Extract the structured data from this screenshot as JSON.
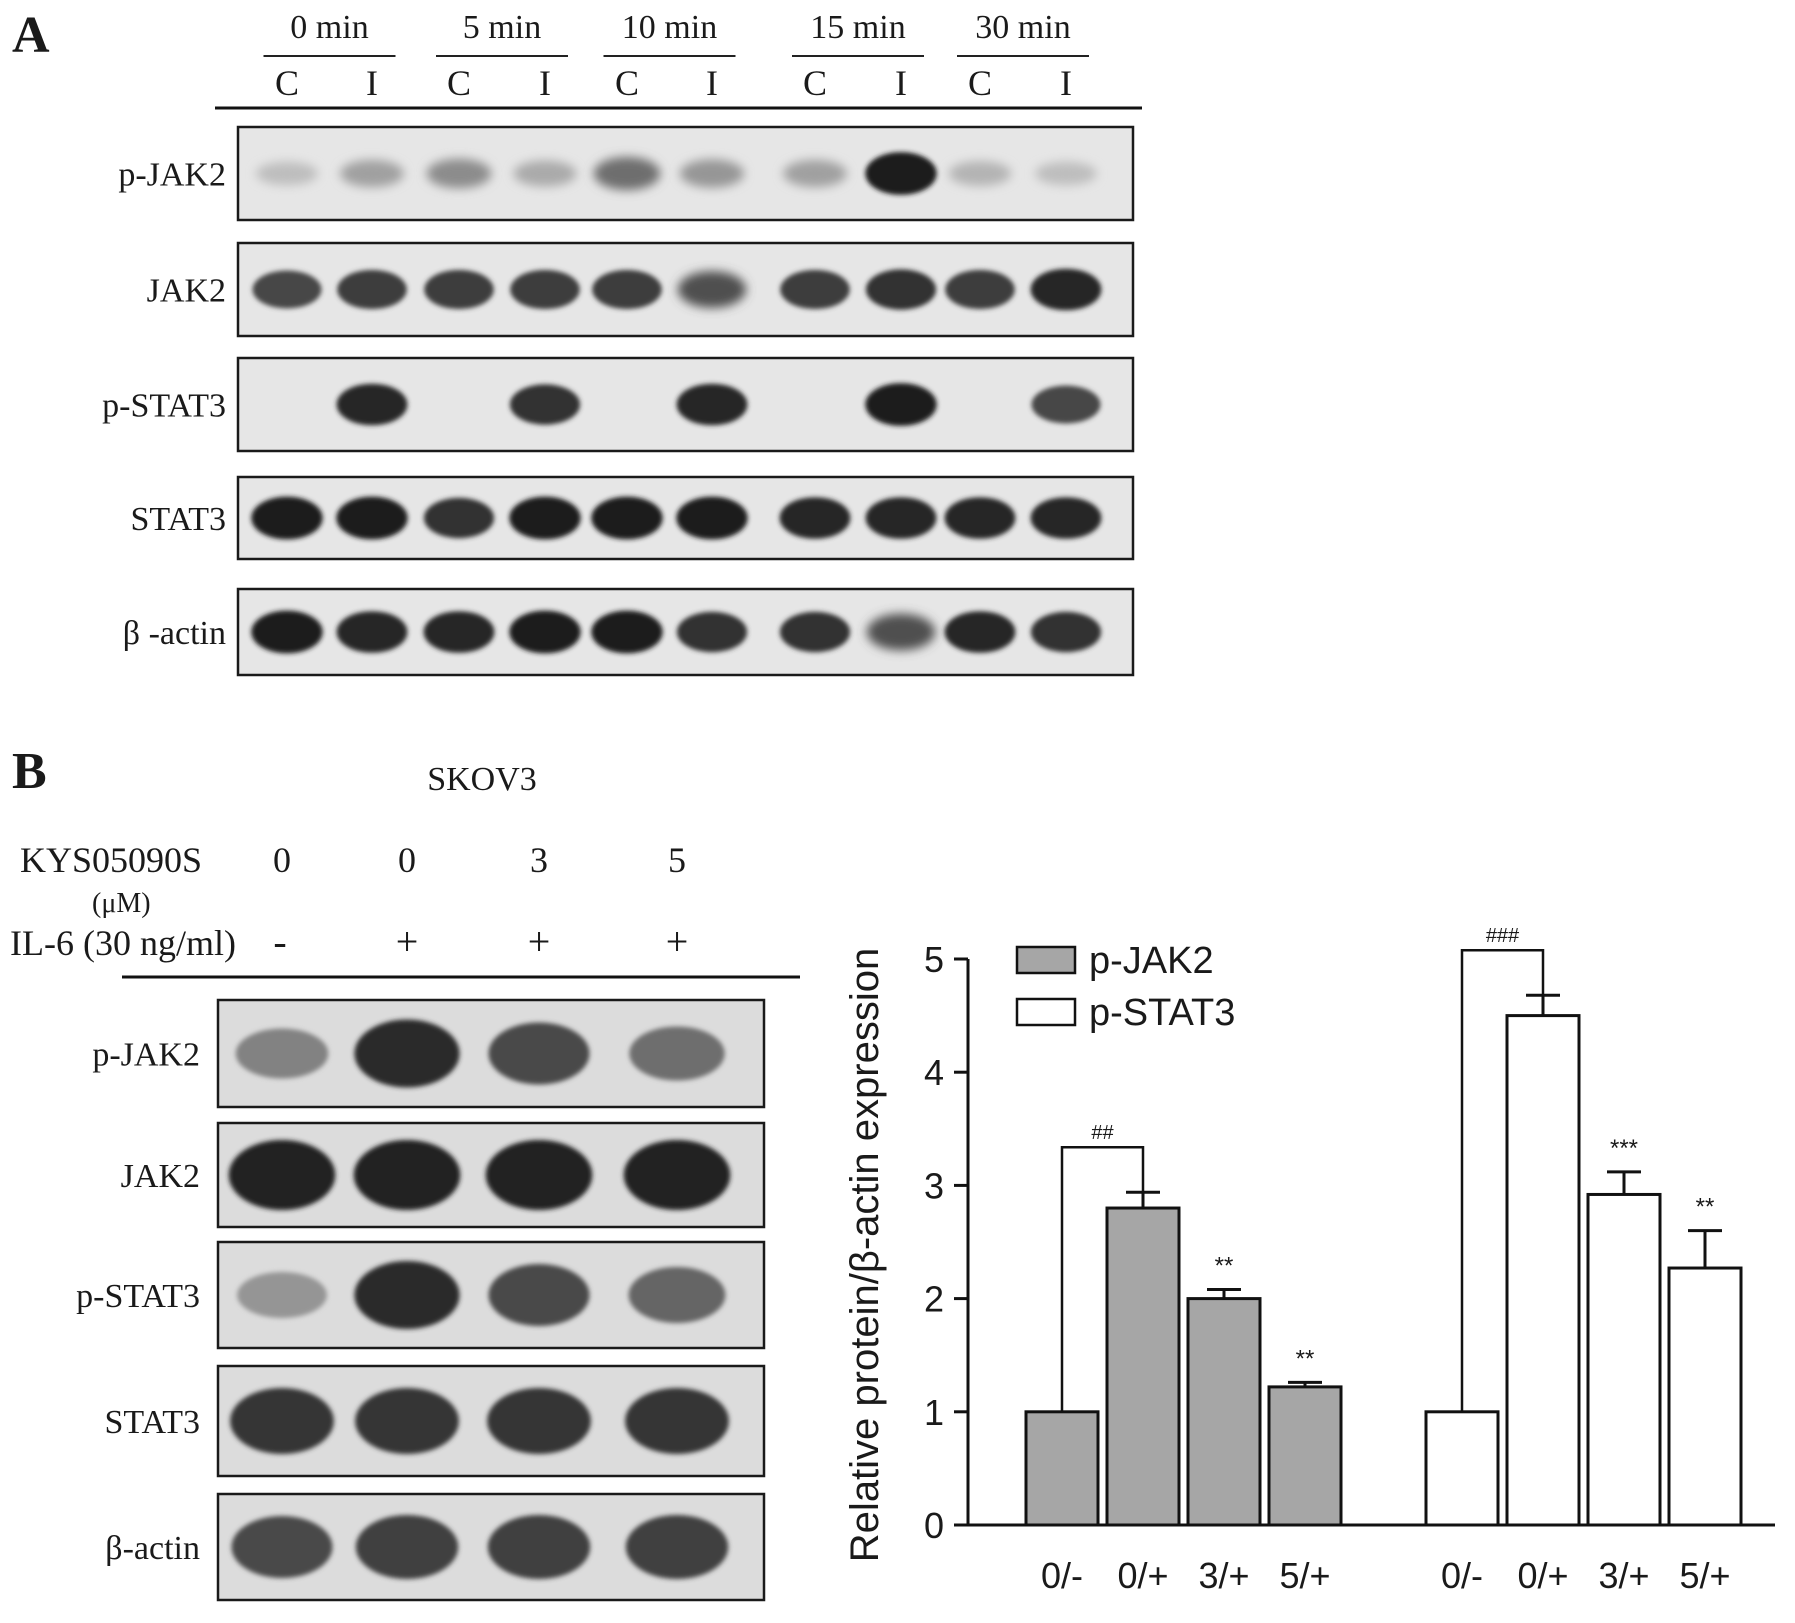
{
  "panel_a": {
    "label": "A",
    "timepoints": [
      "0 min",
      "5 min",
      "10 min",
      "15 min",
      "30 min"
    ],
    "lane_labels": [
      "C",
      "I",
      "C",
      "I",
      "C",
      "I",
      "C",
      "I",
      "C",
      "I"
    ],
    "blot_rows": [
      {
        "label": "p-JAK2",
        "intensity": [
          0.15,
          0.3,
          0.4,
          0.25,
          0.55,
          0.35,
          0.3,
          0.95,
          0.2,
          0.15
        ]
      },
      {
        "label": "JAK2",
        "intensity": [
          0.75,
          0.8,
          0.8,
          0.8,
          0.8,
          0.7,
          0.8,
          0.85,
          0.8,
          0.9
        ]
      },
      {
        "label": "p-STAT3",
        "intensity": [
          0.0,
          0.9,
          0.0,
          0.85,
          0.0,
          0.9,
          0.0,
          0.95,
          0.0,
          0.75
        ]
      },
      {
        "label": "STAT3",
        "intensity": [
          0.95,
          0.95,
          0.85,
          0.95,
          0.95,
          0.95,
          0.9,
          0.9,
          0.9,
          0.9
        ]
      },
      {
        "label": "β -actin",
        "intensity": [
          0.95,
          0.9,
          0.9,
          0.95,
          0.95,
          0.85,
          0.85,
          0.7,
          0.9,
          0.85
        ]
      }
    ]
  },
  "panel_b": {
    "label": "B",
    "cell_line": "SKOV3",
    "kys_label": "KYS05090S",
    "kys_unit": "(μM)",
    "kys_values": [
      "0",
      "0",
      "3",
      "5"
    ],
    "il6_label": "IL-6 (30 ng/ml)",
    "il6_values": [
      "-",
      "+",
      "+",
      "+"
    ],
    "blot_rows": [
      {
        "label": "p-JAK2",
        "intensity": [
          0.45,
          0.9,
          0.75,
          0.55
        ]
      },
      {
        "label": "JAK2",
        "intensity": [
          0.95,
          0.95,
          0.95,
          0.95
        ]
      },
      {
        "label": "p-STAT3",
        "intensity": [
          0.35,
          0.9,
          0.75,
          0.6
        ]
      },
      {
        "label": "STAT3",
        "intensity": [
          0.85,
          0.85,
          0.85,
          0.85
        ]
      },
      {
        "label": "β-actin",
        "intensity": [
          0.75,
          0.8,
          0.8,
          0.8
        ]
      }
    ]
  },
  "chart_data": {
    "type": "bar",
    "ylabel": "Relative protein/β-actin expression",
    "ylim": [
      0,
      5
    ],
    "yticks": [
      "0",
      "1",
      "2",
      "3",
      "4",
      "5"
    ],
    "categories": [
      "0/-",
      "0/+",
      "3/+",
      "5/+"
    ],
    "legend_position": "top-left",
    "series": [
      {
        "name": "p-JAK2",
        "color": "#a6a6a6",
        "values": [
          1.0,
          2.8,
          2.0,
          1.22
        ],
        "errors": [
          0.0,
          0.14,
          0.08,
          0.04
        ],
        "annotations": [
          "",
          "",
          "**",
          "**"
        ],
        "bracket_label": "##"
      },
      {
        "name": "p-STAT3",
        "color": "#ffffff",
        "values": [
          1.0,
          4.5,
          2.92,
          2.27
        ],
        "errors": [
          0.0,
          0.18,
          0.2,
          0.33
        ],
        "annotations": [
          "",
          "",
          "***",
          "**"
        ],
        "bracket_label": "###"
      }
    ]
  }
}
